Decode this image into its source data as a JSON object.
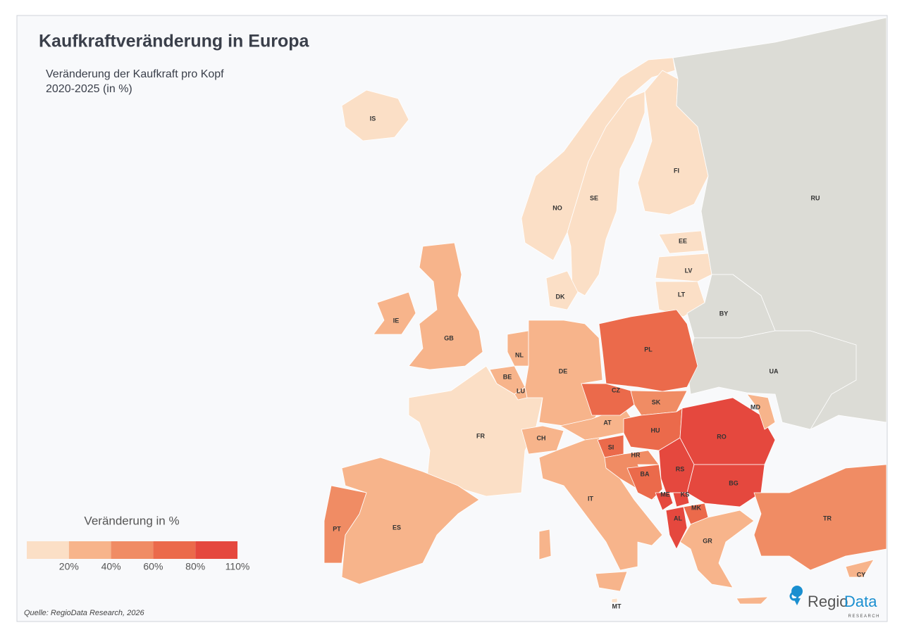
{
  "header": {
    "title": "Kaufkraftveränderung in Europa",
    "subtitle_line1": "Veränderung der Kaufkraft pro Kopf",
    "subtitle_line2": "2020-2025 (in %)"
  },
  "legend": {
    "title": "Veränderung in %",
    "colors": [
      "#fbdfc6",
      "#f7b48b",
      "#f08c64",
      "#eb6a4b",
      "#e5483e"
    ],
    "ticks": [
      {
        "value": 20,
        "label": "20%"
      },
      {
        "value": 40,
        "label": "40%"
      },
      {
        "value": 60,
        "label": "60%"
      },
      {
        "value": 80,
        "label": "80%"
      },
      {
        "value": 110,
        "label": "110%"
      }
    ]
  },
  "countries": [
    {
      "code": "IS",
      "color": "#fbdfc6"
    },
    {
      "code": "NO",
      "color": "#fbdfc6"
    },
    {
      "code": "SE",
      "color": "#fbdfc6"
    },
    {
      "code": "FI",
      "color": "#fbdfc6"
    },
    {
      "code": "EE",
      "color": "#fbdfc6"
    },
    {
      "code": "LV",
      "color": "#fbdfc6"
    },
    {
      "code": "LT",
      "color": "#fbdfc6"
    },
    {
      "code": "DK",
      "color": "#fbdfc6"
    },
    {
      "code": "RU",
      "color": "#dcdcd6"
    },
    {
      "code": "BY",
      "color": "#dcdcd6"
    },
    {
      "code": "UA",
      "color": "#dcdcd6"
    },
    {
      "code": "IE",
      "color": "#f7b48b"
    },
    {
      "code": "GB",
      "color": "#f7b48b"
    },
    {
      "code": "FR",
      "color": "#fbdfc6"
    },
    {
      "code": "BE",
      "color": "#f7b48b"
    },
    {
      "code": "NL",
      "color": "#f7b48b"
    },
    {
      "code": "LU",
      "color": "#f7b48b"
    },
    {
      "code": "DE",
      "color": "#f7b48b"
    },
    {
      "code": "CH",
      "color": "#f7b48b"
    },
    {
      "code": "AT",
      "color": "#f7b48b"
    },
    {
      "code": "IT",
      "color": "#f7b48b"
    },
    {
      "code": "ES",
      "color": "#f7b48b"
    },
    {
      "code": "PT",
      "color": "#f08c64"
    },
    {
      "code": "PL",
      "color": "#eb6a4b"
    },
    {
      "code": "CZ",
      "color": "#eb6a4b"
    },
    {
      "code": "SK",
      "color": "#f08c64"
    },
    {
      "code": "HU",
      "color": "#eb6a4b"
    },
    {
      "code": "SI",
      "color": "#eb6a4b"
    },
    {
      "code": "HR",
      "color": "#f08c64"
    },
    {
      "code": "BA",
      "color": "#eb6a4b"
    },
    {
      "code": "RS",
      "color": "#e5483e"
    },
    {
      "code": "RO",
      "color": "#e5483e"
    },
    {
      "code": "MD",
      "color": "#f7b48b"
    },
    {
      "code": "BG",
      "color": "#e5483e"
    },
    {
      "code": "ME",
      "color": "#e5483e"
    },
    {
      "code": "KS",
      "color": "#e5483e"
    },
    {
      "code": "AL",
      "color": "#e5483e"
    },
    {
      "code": "MK",
      "color": "#eb6a4b"
    },
    {
      "code": "GR",
      "color": "#f7b48b"
    },
    {
      "code": "TR",
      "color": "#f08c64"
    },
    {
      "code": "CY",
      "color": "#f7b48b"
    },
    {
      "code": "MT",
      "color": "#fbdfc6"
    }
  ],
  "source": "Quelle: RegioData Research, 2026",
  "logo": {
    "part1": "Regio",
    "part2": "Data",
    "tagline": "RESEARCH"
  }
}
